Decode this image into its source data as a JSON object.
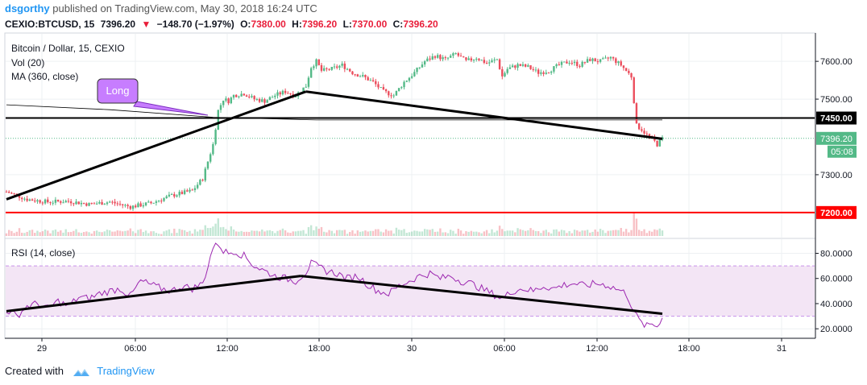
{
  "header": {
    "user": "dsgorthy",
    "published_text": "published on TradingView.com, May 30, 2018 16:24 UTC",
    "symbol": "CEXIO:BTCUSD, 15",
    "last": "7396.20",
    "change": "−148.70 (−1.97%)",
    "o_label": "O:",
    "o": "7380.00",
    "h_label": "H:",
    "h": "7396.20",
    "l_label": "L:",
    "l": "7370.00",
    "c_label": "C:",
    "c": "7396.20"
  },
  "legend": {
    "title": "Bitcoin / Dollar, 15, CEXIO",
    "vol": "Vol (20)",
    "ma": "MA (360, close)",
    "rsi": "RSI (14, close)"
  },
  "annotation": {
    "text": "Long"
  },
  "price_axis": {
    "ticks": [
      "7600.00",
      "7500.00",
      "7300.00"
    ],
    "tick_values": [
      7600,
      7500,
      7300
    ],
    "labels": {
      "resistance": "7450.00",
      "last": "7396.20",
      "countdown": "05:08",
      "support": "7200.00"
    }
  },
  "rsi_axis": {
    "ticks": [
      "80.0000",
      "60.0000",
      "40.0000",
      "20.0000"
    ],
    "tick_values": [
      80,
      60,
      40,
      20
    ]
  },
  "time_axis": [
    "29",
    "06:00",
    "12:00",
    "18:00",
    "30",
    "06:00",
    "12:00",
    "18:00",
    "31"
  ],
  "colors": {
    "up": "#53b987",
    "down": "#eb4d5c",
    "resistance": "#000000",
    "support": "#ff0000",
    "rsi": "#9c27b0",
    "rsi_band": "#f3e5f5",
    "annotation": "#c77dff"
  },
  "chart_data": {
    "type": "line",
    "title": "Bitcoin / Dollar, 15, CEXIO",
    "ylim": [
      7140,
      7660
    ],
    "price_path": [
      [
        0,
        7255
      ],
      [
        8,
        7235
      ],
      [
        16,
        7228
      ],
      [
        24,
        7230
      ],
      [
        32,
        7222
      ],
      [
        40,
        7228
      ],
      [
        48,
        7215
      ],
      [
        56,
        7225
      ],
      [
        64,
        7245
      ],
      [
        72,
        7258
      ],
      [
        76,
        7290
      ],
      [
        80,
        7380
      ],
      [
        82,
        7470
      ],
      [
        84,
        7500
      ],
      [
        86,
        7495
      ],
      [
        88,
        7510
      ],
      [
        92,
        7515
      ],
      [
        96,
        7500
      ],
      [
        100,
        7495
      ],
      [
        104,
        7510
      ],
      [
        108,
        7520
      ],
      [
        112,
        7510
      ],
      [
        116,
        7535
      ],
      [
        118,
        7585
      ],
      [
        120,
        7600
      ],
      [
        122,
        7575
      ],
      [
        126,
        7580
      ],
      [
        130,
        7590
      ],
      [
        134,
        7570
      ],
      [
        138,
        7560
      ],
      [
        142,
        7545
      ],
      [
        146,
        7520
      ],
      [
        150,
        7510
      ],
      [
        154,
        7545
      ],
      [
        158,
        7570
      ],
      [
        162,
        7600
      ],
      [
        166,
        7615
      ],
      [
        170,
        7605
      ],
      [
        174,
        7620
      ],
      [
        178,
        7600
      ],
      [
        182,
        7610
      ],
      [
        186,
        7595
      ],
      [
        190,
        7605
      ],
      [
        192,
        7560
      ],
      [
        194,
        7580
      ],
      [
        198,
        7590
      ],
      [
        202,
        7585
      ],
      [
        206,
        7570
      ],
      [
        210,
        7575
      ],
      [
        214,
        7590
      ],
      [
        218,
        7600
      ],
      [
        222,
        7590
      ],
      [
        226,
        7605
      ],
      [
        230,
        7600
      ],
      [
        234,
        7610
      ],
      [
        238,
        7590
      ],
      [
        240,
        7575
      ],
      [
        242,
        7560
      ],
      [
        244,
        7430
      ],
      [
        246,
        7420
      ],
      [
        248,
        7405
      ],
      [
        250,
        7395
      ],
      [
        252,
        7380
      ],
      [
        254,
        7396
      ]
    ],
    "resistance_level": 7450,
    "support_level": 7200,
    "trendlines_price": [
      {
        "x": [
          0,
          116
        ],
        "y": [
          7235,
          7520
        ]
      },
      {
        "x": [
          116,
          254
        ],
        "y": [
          7520,
          7395
        ]
      }
    ],
    "rsi_path": [
      [
        0,
        35
      ],
      [
        4,
        30
      ],
      [
        8,
        38
      ],
      [
        12,
        40
      ],
      [
        16,
        36
      ],
      [
        20,
        42
      ],
      [
        24,
        38
      ],
      [
        28,
        45
      ],
      [
        32,
        44
      ],
      [
        36,
        48
      ],
      [
        40,
        50
      ],
      [
        44,
        52
      ],
      [
        48,
        46
      ],
      [
        52,
        58
      ],
      [
        56,
        55
      ],
      [
        60,
        52
      ],
      [
        64,
        50
      ],
      [
        68,
        54
      ],
      [
        72,
        52
      ],
      [
        76,
        56
      ],
      [
        78,
        70
      ],
      [
        80,
        85
      ],
      [
        82,
        88
      ],
      [
        84,
        82
      ],
      [
        86,
        80
      ],
      [
        88,
        82
      ],
      [
        92,
        78
      ],
      [
        96,
        70
      ],
      [
        100,
        66
      ],
      [
        104,
        62
      ],
      [
        108,
        60
      ],
      [
        112,
        58
      ],
      [
        116,
        65
      ],
      [
        118,
        72
      ],
      [
        120,
        70
      ],
      [
        124,
        66
      ],
      [
        128,
        64
      ],
      [
        132,
        60
      ],
      [
        136,
        62
      ],
      [
        140,
        55
      ],
      [
        144,
        50
      ],
      [
        148,
        48
      ],
      [
        152,
        54
      ],
      [
        156,
        58
      ],
      [
        160,
        62
      ],
      [
        164,
        64
      ],
      [
        168,
        60
      ],
      [
        172,
        62
      ],
      [
        176,
        58
      ],
      [
        180,
        56
      ],
      [
        184,
        52
      ],
      [
        188,
        48
      ],
      [
        192,
        44
      ],
      [
        196,
        50
      ],
      [
        200,
        52
      ],
      [
        204,
        50
      ],
      [
        208,
        54
      ],
      [
        212,
        52
      ],
      [
        216,
        55
      ],
      [
        220,
        56
      ],
      [
        224,
        54
      ],
      [
        228,
        56
      ],
      [
        232,
        55
      ],
      [
        236,
        52
      ],
      [
        240,
        48
      ],
      [
        244,
        30
      ],
      [
        246,
        24
      ],
      [
        248,
        22
      ],
      [
        250,
        24
      ],
      [
        252,
        22
      ],
      [
        254,
        30
      ]
    ],
    "rsi_ylim": [
      15,
      88
    ],
    "rsi_band": [
      30,
      70
    ],
    "trendlines_rsi": [
      {
        "x": [
          0,
          114
        ],
        "y": [
          34,
          62
        ]
      },
      {
        "x": [
          114,
          254
        ],
        "y": [
          62,
          32
        ]
      }
    ]
  },
  "footer": {
    "created_with": "Created with",
    "brand": "TradingView"
  }
}
